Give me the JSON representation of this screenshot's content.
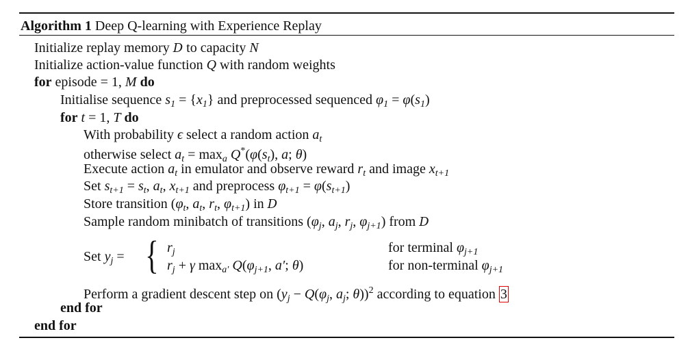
{
  "header": {
    "label": "Algorithm 1",
    "title": " Deep Q-learning with Experience Replay"
  },
  "lines": [
    {
      "indent": 0,
      "segs": [
        {
          "t": "Initialize replay memory ",
          "s": "r"
        },
        {
          "t": "D",
          "s": "cal"
        },
        {
          "t": " to capacity ",
          "s": "r"
        },
        {
          "t": "N",
          "s": "i"
        }
      ]
    },
    {
      "indent": 0,
      "segs": [
        {
          "t": "Initialize action-value function ",
          "s": "r"
        },
        {
          "t": "Q",
          "s": "i"
        },
        {
          "t": " with random weights",
          "s": "r"
        }
      ]
    },
    {
      "indent": 0,
      "segs": [
        {
          "t": "for",
          "s": "b"
        },
        {
          "t": " episode = 1, ",
          "s": "r"
        },
        {
          "t": "M",
          "s": "i"
        },
        {
          "t": " ",
          "s": "r"
        },
        {
          "t": "do",
          "s": "b"
        }
      ]
    },
    {
      "indent": 1,
      "segs": [
        {
          "t": "Initialise sequence ",
          "s": "r"
        },
        {
          "t": "s",
          "s": "i"
        },
        {
          "t": "1",
          "s": "sub"
        },
        {
          "t": " = {",
          "s": "r"
        },
        {
          "t": "x",
          "s": "i"
        },
        {
          "t": "1",
          "s": "sub"
        },
        {
          "t": "} and preprocessed sequenced ",
          "s": "r"
        },
        {
          "t": "φ",
          "s": "i"
        },
        {
          "t": "1",
          "s": "sub"
        },
        {
          "t": " = ",
          "s": "r"
        },
        {
          "t": "φ",
          "s": "i"
        },
        {
          "t": "(",
          "s": "r"
        },
        {
          "t": "s",
          "s": "i"
        },
        {
          "t": "1",
          "s": "sub"
        },
        {
          "t": ")",
          "s": "r"
        }
      ]
    },
    {
      "indent": 1,
      "segs": [
        {
          "t": "for",
          "s": "b"
        },
        {
          "t": " ",
          "s": "r"
        },
        {
          "t": "t",
          "s": "i"
        },
        {
          "t": " = 1, ",
          "s": "r"
        },
        {
          "t": "T",
          "s": "i"
        },
        {
          "t": " ",
          "s": "r"
        },
        {
          "t": "do",
          "s": "b"
        }
      ]
    },
    {
      "indent": 2,
      "segs": [
        {
          "t": "With probability ",
          "s": "r"
        },
        {
          "t": "ϵ",
          "s": "i"
        },
        {
          "t": " select a random action ",
          "s": "r"
        },
        {
          "t": "a",
          "s": "i"
        },
        {
          "t": "t",
          "s": "sub"
        }
      ]
    },
    {
      "indent": 2,
      "segs": [
        {
          "t": "otherwise select ",
          "s": "r"
        },
        {
          "t": "a",
          "s": "i"
        },
        {
          "t": "t",
          "s": "sub"
        },
        {
          "t": " = max",
          "s": "r"
        },
        {
          "t": "a",
          "s": "sub"
        },
        {
          "t": " ",
          "s": "r"
        },
        {
          "t": "Q",
          "s": "i"
        },
        {
          "t": "*",
          "s": "sup"
        },
        {
          "t": "(",
          "s": "r"
        },
        {
          "t": "φ",
          "s": "i"
        },
        {
          "t": "(",
          "s": "r"
        },
        {
          "t": "s",
          "s": "i"
        },
        {
          "t": "t",
          "s": "sub"
        },
        {
          "t": "), ",
          "s": "r"
        },
        {
          "t": "a",
          "s": "i"
        },
        {
          "t": "; ",
          "s": "r"
        },
        {
          "t": "θ",
          "s": "i"
        },
        {
          "t": ")",
          "s": "r"
        }
      ]
    },
    {
      "indent": 2,
      "segs": [
        {
          "t": "Execute action ",
          "s": "r"
        },
        {
          "t": "a",
          "s": "i"
        },
        {
          "t": "t",
          "s": "sub"
        },
        {
          "t": " in emulator and observe reward ",
          "s": "r"
        },
        {
          "t": "r",
          "s": "i"
        },
        {
          "t": "t",
          "s": "sub"
        },
        {
          "t": " and image ",
          "s": "r"
        },
        {
          "t": "x",
          "s": "i"
        },
        {
          "t": "t+1",
          "s": "sub"
        }
      ]
    },
    {
      "indent": 2,
      "segs": [
        {
          "t": "Set ",
          "s": "r"
        },
        {
          "t": "s",
          "s": "i"
        },
        {
          "t": "t+1",
          "s": "sub"
        },
        {
          "t": " = ",
          "s": "r"
        },
        {
          "t": "s",
          "s": "i"
        },
        {
          "t": "t",
          "s": "sub"
        },
        {
          "t": ", ",
          "s": "r"
        },
        {
          "t": "a",
          "s": "i"
        },
        {
          "t": "t",
          "s": "sub"
        },
        {
          "t": ", ",
          "s": "r"
        },
        {
          "t": "x",
          "s": "i"
        },
        {
          "t": "t+1",
          "s": "sub"
        },
        {
          "t": " and preprocess ",
          "s": "r"
        },
        {
          "t": "φ",
          "s": "i"
        },
        {
          "t": "t+1",
          "s": "sub"
        },
        {
          "t": " = ",
          "s": "r"
        },
        {
          "t": "φ",
          "s": "i"
        },
        {
          "t": "(",
          "s": "r"
        },
        {
          "t": "s",
          "s": "i"
        },
        {
          "t": "t+1",
          "s": "sub"
        },
        {
          "t": ")",
          "s": "r"
        }
      ]
    },
    {
      "indent": 2,
      "segs": [
        {
          "t": "Store transition (",
          "s": "r"
        },
        {
          "t": "φ",
          "s": "i"
        },
        {
          "t": "t",
          "s": "sub"
        },
        {
          "t": ", ",
          "s": "r"
        },
        {
          "t": "a",
          "s": "i"
        },
        {
          "t": "t",
          "s": "sub"
        },
        {
          "t": ", ",
          "s": "r"
        },
        {
          "t": "r",
          "s": "i"
        },
        {
          "t": "t",
          "s": "sub"
        },
        {
          "t": ", ",
          "s": "r"
        },
        {
          "t": "φ",
          "s": "i"
        },
        {
          "t": "t+1",
          "s": "sub"
        },
        {
          "t": ") in ",
          "s": "r"
        },
        {
          "t": "D",
          "s": "cal"
        }
      ]
    },
    {
      "indent": 2,
      "segs": [
        {
          "t": "Sample random minibatch of transitions (",
          "s": "r"
        },
        {
          "t": "φ",
          "s": "i"
        },
        {
          "t": "j",
          "s": "sub"
        },
        {
          "t": ", ",
          "s": "r"
        },
        {
          "t": "a",
          "s": "i"
        },
        {
          "t": "j",
          "s": "sub"
        },
        {
          "t": ", ",
          "s": "r"
        },
        {
          "t": "r",
          "s": "i"
        },
        {
          "t": "j",
          "s": "sub"
        },
        {
          "t": ", ",
          "s": "r"
        },
        {
          "t": "φ",
          "s": "i"
        },
        {
          "t": "j+1",
          "s": "sub"
        },
        {
          "t": ") from ",
          "s": "r"
        },
        {
          "t": "D",
          "s": "cal"
        }
      ]
    }
  ],
  "cases": {
    "label": [
      {
        "t": "Set ",
        "s": "r"
      },
      {
        "t": "y",
        "s": "i"
      },
      {
        "t": "j",
        "s": "sub"
      },
      {
        "t": " =",
        "s": "r"
      }
    ],
    "brace": "{",
    "rows": [
      {
        "expr": [
          {
            "t": "r",
            "s": "i"
          },
          {
            "t": "j",
            "s": "sub"
          }
        ],
        "cond": [
          {
            "t": "for terminal ",
            "s": "r"
          },
          {
            "t": "φ",
            "s": "i"
          },
          {
            "t": "j+1",
            "s": "sub"
          }
        ]
      },
      {
        "expr": [
          {
            "t": "r",
            "s": "i"
          },
          {
            "t": "j",
            "s": "sub"
          },
          {
            "t": " + ",
            "s": "r"
          },
          {
            "t": "γ",
            "s": "i"
          },
          {
            "t": " max",
            "s": "r"
          },
          {
            "t": "a′",
            "s": "sub"
          },
          {
            "t": " ",
            "s": "r"
          },
          {
            "t": "Q",
            "s": "i"
          },
          {
            "t": "(",
            "s": "r"
          },
          {
            "t": "φ",
            "s": "i"
          },
          {
            "t": "j+1",
            "s": "sub"
          },
          {
            "t": ", ",
            "s": "r"
          },
          {
            "t": "a′",
            "s": "i"
          },
          {
            "t": "; ",
            "s": "r"
          },
          {
            "t": "θ",
            "s": "i"
          },
          {
            "t": ")",
            "s": "r"
          }
        ],
        "cond": [
          {
            "t": "for non-terminal ",
            "s": "r"
          },
          {
            "t": "φ",
            "s": "i"
          },
          {
            "t": "j+1",
            "s": "sub"
          }
        ]
      }
    ]
  },
  "tail": [
    {
      "indent": 2,
      "segs": [
        {
          "t": "Perform a gradient descent step on (",
          "s": "r"
        },
        {
          "t": "y",
          "s": "i"
        },
        {
          "t": "j",
          "s": "sub"
        },
        {
          "t": " − ",
          "s": "r"
        },
        {
          "t": "Q",
          "s": "i"
        },
        {
          "t": "(",
          "s": "r"
        },
        {
          "t": "φ",
          "s": "i"
        },
        {
          "t": "j",
          "s": "sub"
        },
        {
          "t": ", ",
          "s": "r"
        },
        {
          "t": "a",
          "s": "i"
        },
        {
          "t": "j",
          "s": "sub"
        },
        {
          "t": "; ",
          "s": "r"
        },
        {
          "t": "θ",
          "s": "i"
        },
        {
          "t": "))",
          "s": "r"
        },
        {
          "t": "2",
          "s": "sup"
        },
        {
          "t": " according to equation ",
          "s": "r"
        },
        {
          "t": "3",
          "s": "ref"
        }
      ]
    },
    {
      "indent": 1,
      "segs": [
        {
          "t": "end for",
          "s": "b"
        }
      ]
    },
    {
      "indent": 0,
      "segs": [
        {
          "t": "end for",
          "s": "b"
        }
      ]
    }
  ],
  "colors": {
    "text": "#111111",
    "reference_box": "#e00000"
  }
}
